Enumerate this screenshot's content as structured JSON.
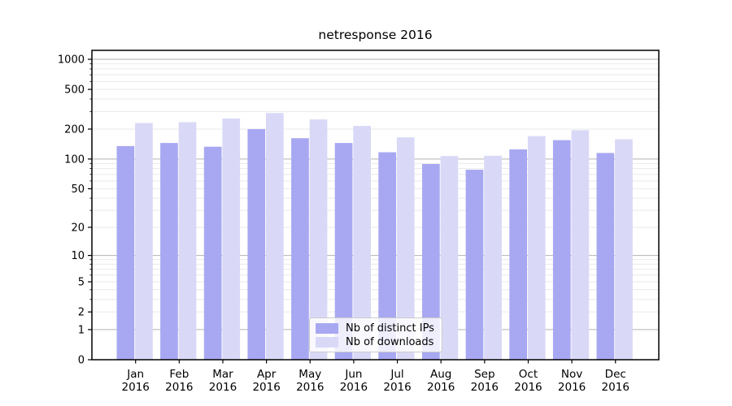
{
  "title": "netresponse 2016",
  "chart_data": {
    "type": "bar",
    "title": "netresponse 2016",
    "categories": [
      "Jan 2016",
      "Feb 2016",
      "Mar 2016",
      "Apr 2016",
      "May 2016",
      "Jun 2016",
      "Jul 2016",
      "Aug 2016",
      "Sep 2016",
      "Oct 2016",
      "Nov 2016",
      "Dec 2016"
    ],
    "series": [
      {
        "name": "Nb of distinct IPs",
        "color": "#a8a8f2",
        "values": [
          135,
          145,
          133,
          200,
          162,
          145,
          117,
          89,
          78,
          125,
          155,
          115
        ]
      },
      {
        "name": "Nb of downloads",
        "color": "#d9d9f7",
        "values": [
          230,
          235,
          255,
          290,
          250,
          215,
          165,
          107,
          108,
          170,
          195,
          158
        ]
      }
    ],
    "xlabel": "",
    "ylabel": "",
    "yscale": "symlog",
    "yticks": [
      0,
      1,
      2,
      5,
      10,
      20,
      50,
      100,
      200,
      500,
      1000
    ],
    "ylim": [
      0,
      1230
    ],
    "grid": true,
    "legend_position": "lower center",
    "colors": {
      "major_grid": "#b2b2b2",
      "minor_grid": "#e9e9e9",
      "spine": "#000000",
      "background": "#ffffff"
    }
  }
}
